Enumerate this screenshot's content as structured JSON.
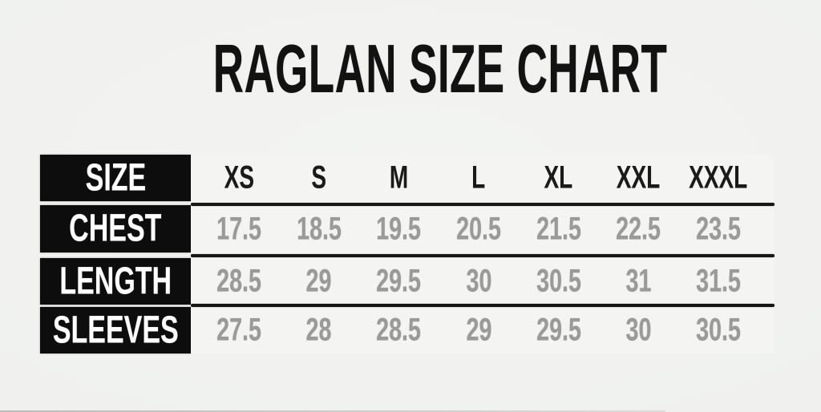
{
  "colors": {
    "background": "#f0f1ef",
    "row_label_bg": "#0d0d0d",
    "row_label_text": "#ffffff",
    "title_text": "#121212",
    "column_header_text": "#1a1a1a",
    "value_text": "#9a9a9a",
    "divider_line": "#161616"
  },
  "chart_data": {
    "type": "table",
    "title": "RAGLAN SIZE CHART",
    "corner_label": "SIZE",
    "columns": [
      "XS",
      "S",
      "M",
      "L",
      "XL",
      "XXL",
      "XXXL"
    ],
    "rows": [
      {
        "label": "CHEST",
        "values": [
          17.5,
          18.5,
          19.5,
          20.5,
          21.5,
          22.5,
          23.5
        ]
      },
      {
        "label": "LENGTH",
        "values": [
          28.5,
          29,
          29.5,
          30,
          30.5,
          31,
          31.5
        ]
      },
      {
        "label": "SLEEVES",
        "values": [
          27.5,
          28,
          28.5,
          29,
          29.5,
          30,
          30.5
        ]
      }
    ],
    "layout_hints": {
      "header_column_style": "black boxes with white text",
      "grid": "horizontal thick black lines between rows only"
    }
  }
}
